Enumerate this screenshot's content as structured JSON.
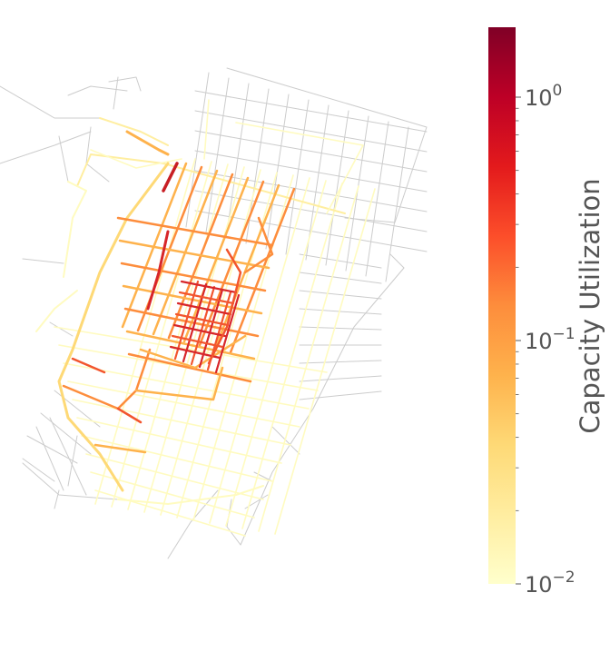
{
  "colorbar": {
    "label": "Capacity Utilization",
    "scale": "log",
    "range": [
      0.0,
      2.0
    ],
    "colormap": [
      "#ffffcc",
      "#ffeda0",
      "#fed976",
      "#feb24c",
      "#fd8d3c",
      "#fc4e2a",
      "#e31a1c",
      "#bd0026",
      "#800026"
    ],
    "ticks": [
      {
        "value": 1.0,
        "base": "10",
        "exp": "0"
      },
      {
        "value": 0.1,
        "base": "10",
        "exp": "−1"
      },
      {
        "value": 0.01,
        "base": "10",
        "exp": "−2"
      }
    ]
  },
  "map": {
    "unused_road_color": "#cccccc"
  }
}
